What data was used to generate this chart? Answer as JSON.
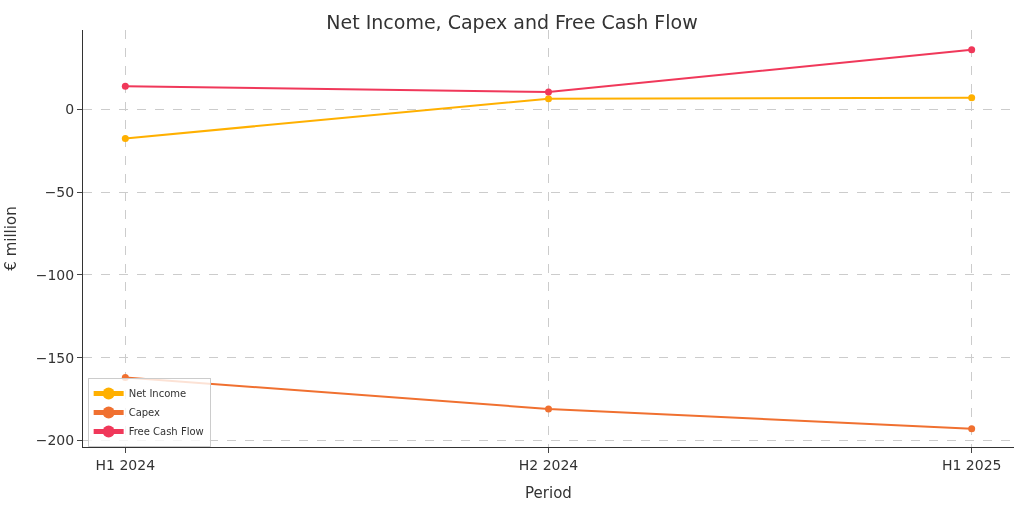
{
  "chart_data": {
    "type": "line",
    "title": "Net Income, Capex and Free Cash Flow",
    "xlabel": "Period",
    "ylabel": "€ million",
    "categories": [
      "H1 2024",
      "H2 2024",
      "H1 2025"
    ],
    "series": [
      {
        "name": "Net Income",
        "color": "#ffb000",
        "values": [
          -17.5,
          6.5,
          7
        ]
      },
      {
        "name": "Capex",
        "color": "#f07030",
        "values": [
          -162,
          -181,
          -193
        ]
      },
      {
        "name": "Free Cash Flow",
        "color": "#f0385a",
        "values": [
          14,
          10.5,
          36
        ]
      }
    ],
    "ylim": [
      -204,
      48
    ],
    "yticks": [
      -200,
      -150,
      -100,
      -50,
      0
    ],
    "grid": true,
    "legend": "bottom left",
    "marker": "circle",
    "line_style": "solid"
  }
}
